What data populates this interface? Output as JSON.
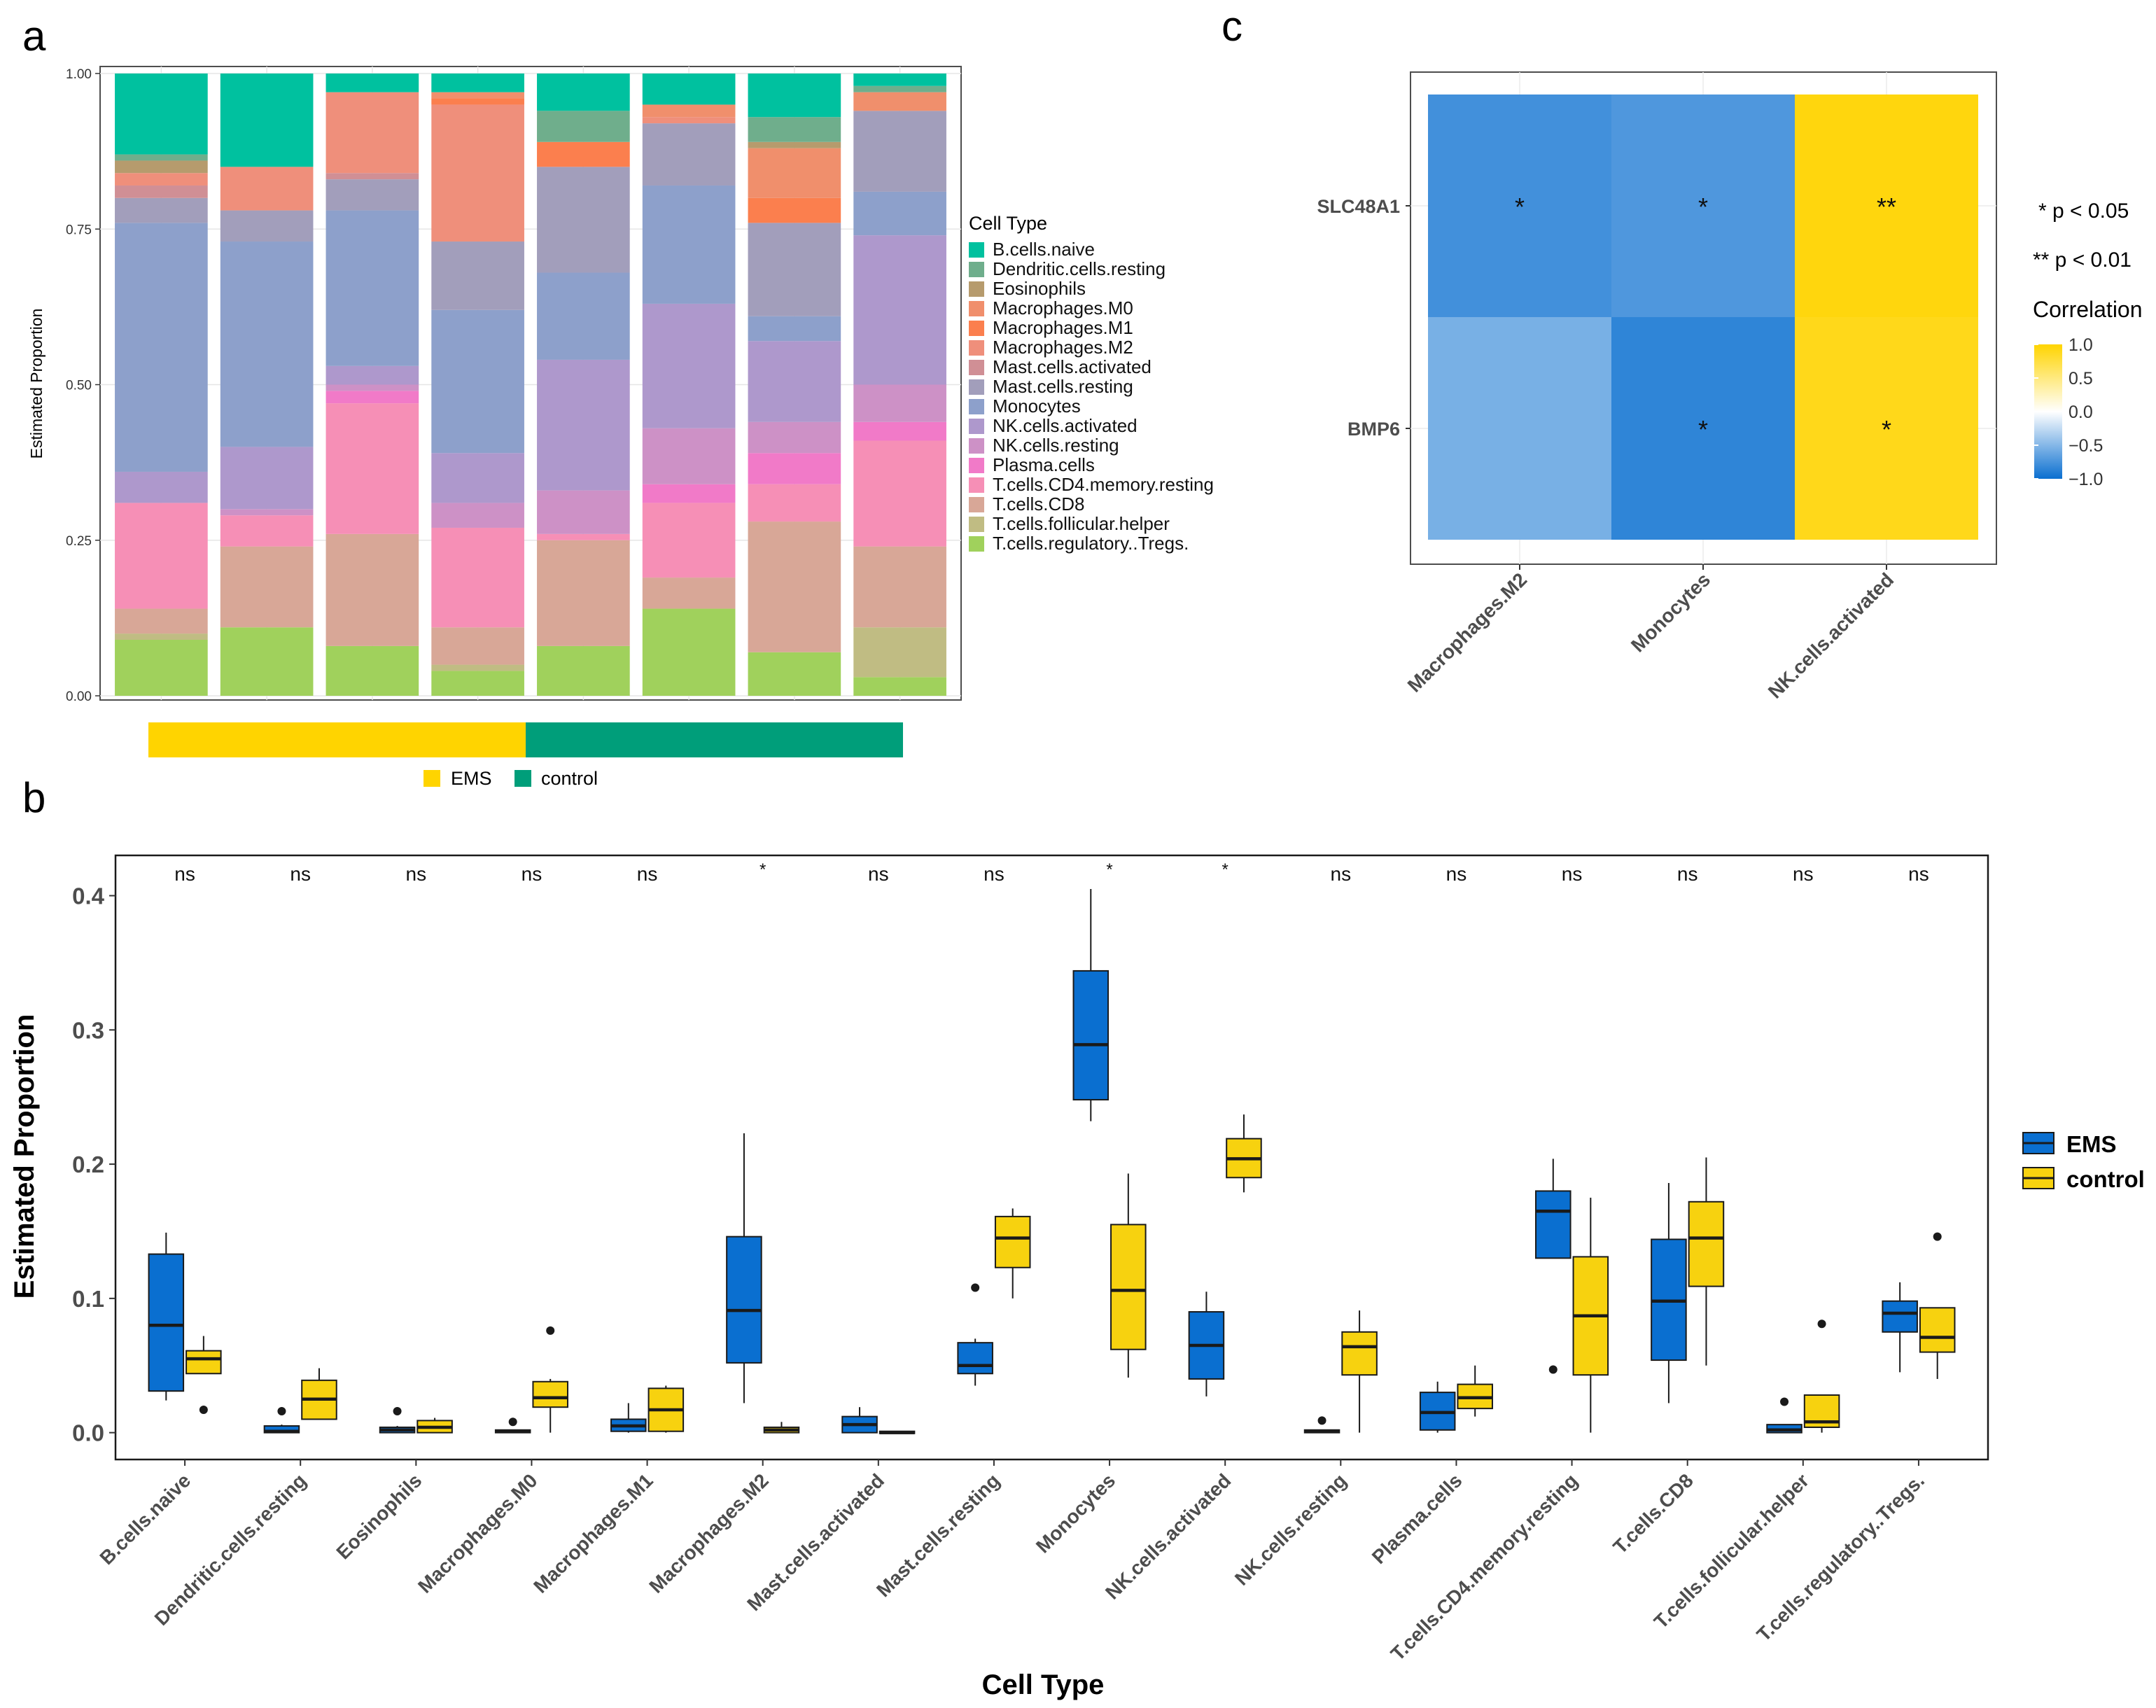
{
  "panel_labels": {
    "a": "a",
    "b": "b",
    "c": "c"
  },
  "colors": {
    "EMS": "#0a6fd0",
    "control": "#f7d20f",
    "EMS_bar": "#ffd400",
    "control_bar": "#009e7a",
    "correlation_high": "#ffd84a",
    "correlation_low": "#0a6fd0"
  },
  "chart_data": [
    {
      "id": "a",
      "type": "stacked-bar",
      "title": "",
      "xlabel": "",
      "ylabel": "Estimated Proportion",
      "ylim": [
        0,
        1
      ],
      "yticks": [
        "0.00",
        "0.25",
        "0.50",
        "0.75",
        "1.00"
      ],
      "legend_title": "Cell Type",
      "legend_position": "right",
      "cell_types": [
        "B.cells.naive",
        "Dendritic.cells.resting",
        "Eosinophils",
        "Macrophages.M0",
        "Macrophages.M1",
        "Macrophages.M2",
        "Mast.cells.activated",
        "Mast.cells.resting",
        "Monocytes",
        "NK.cells.activated",
        "NK.cells.resting",
        "Plasma.cells",
        "T.cells.CD4.memory.resting",
        "T.cells.CD8",
        "T.cells.follicular.helper",
        "T.cells.regulatory..Tregs."
      ],
      "type_colors": [
        "#00c19f",
        "#6fae8c",
        "#b69b6d",
        "#f08f6c",
        "#fb7f4e",
        "#ef8f7b",
        "#d08f95",
        "#a29ebb",
        "#8da0cb",
        "#ae98cc",
        "#cd91c6",
        "#f17ac8",
        "#f68fb6",
        "#d8a797",
        "#c0bc83",
        "#a0d15c"
      ],
      "samples": [
        {
          "group": "EMS",
          "values": [
            0.13,
            0.01,
            0.02,
            0.0,
            0.0,
            0.02,
            0.02,
            0.04,
            0.4,
            0.05,
            0.0,
            0.0,
            0.17,
            0.04,
            0.01,
            0.09
          ]
        },
        {
          "group": "EMS",
          "values": [
            0.15,
            0.0,
            0.0,
            0.0,
            0.0,
            0.07,
            0.0,
            0.05,
            0.33,
            0.1,
            0.01,
            0.0,
            0.05,
            0.13,
            0.0,
            0.11
          ]
        },
        {
          "group": "EMS",
          "values": [
            0.03,
            0.0,
            0.0,
            0.0,
            0.0,
            0.13,
            0.01,
            0.05,
            0.25,
            0.03,
            0.01,
            0.02,
            0.21,
            0.18,
            0.0,
            0.08
          ]
        },
        {
          "group": "EMS",
          "values": [
            0.03,
            0.0,
            0.0,
            0.01,
            0.01,
            0.22,
            0.0,
            0.11,
            0.23,
            0.08,
            0.04,
            0.0,
            0.16,
            0.06,
            0.01,
            0.04
          ]
        },
        {
          "group": "control",
          "values": [
            0.06,
            0.05,
            0.0,
            0.0,
            0.04,
            0.0,
            0.0,
            0.17,
            0.14,
            0.21,
            0.07,
            0.0,
            0.01,
            0.17,
            0.0,
            0.08
          ]
        },
        {
          "group": "control",
          "values": [
            0.05,
            0.0,
            0.0,
            0.02,
            0.0,
            0.01,
            0.0,
            0.1,
            0.19,
            0.2,
            0.09,
            0.03,
            0.12,
            0.05,
            0.0,
            0.14
          ]
        },
        {
          "group": "control",
          "values": [
            0.07,
            0.04,
            0.01,
            0.08,
            0.04,
            0.0,
            0.0,
            0.15,
            0.04,
            0.13,
            0.05,
            0.05,
            0.06,
            0.21,
            0.0,
            0.07
          ]
        },
        {
          "group": "control",
          "values": [
            0.02,
            0.01,
            0.0,
            0.03,
            0.0,
            0.0,
            0.0,
            0.13,
            0.07,
            0.24,
            0.06,
            0.03,
            0.17,
            0.13,
            0.08,
            0.03
          ]
        }
      ],
      "group_legend": [
        "EMS",
        "control"
      ]
    },
    {
      "id": "b",
      "type": "boxplot",
      "xlabel": "Cell Type",
      "ylabel": "Estimated Proportion",
      "ylim": [
        -0.02,
        0.43
      ],
      "yticks": [
        "0.0",
        "0.1",
        "0.2",
        "0.3",
        "0.4"
      ],
      "legend_position": "right",
      "groups": [
        "EMS",
        "control"
      ],
      "categories": [
        "B.cells.naive",
        "Dendritic.cells.resting",
        "Eosinophils",
        "Macrophages.M0",
        "Macrophages.M1",
        "Macrophages.M2",
        "Mast.cells.activated",
        "Mast.cells.resting",
        "Monocytes",
        "NK.cells.activated",
        "NK.cells.resting",
        "Plasma.cells",
        "T.cells.CD4.memory.resting",
        "T.cells.CD8",
        "T.cells.follicular.helper",
        "T.cells.regulatory..Tregs."
      ],
      "significance": [
        "ns",
        "ns",
        "ns",
        "ns",
        "ns",
        "*",
        "ns",
        "ns",
        "*",
        "*",
        "ns",
        "ns",
        "ns",
        "ns",
        "ns",
        "ns"
      ],
      "series": [
        {
          "name": "EMS",
          "boxes": [
            {
              "min": 0.024,
              "q1": 0.031,
              "median": 0.08,
              "q3": 0.133,
              "max": 0.149,
              "outliers": []
            },
            {
              "min": 0.0,
              "q1": 0.0,
              "median": 0.001,
              "q3": 0.005,
              "max": 0.006,
              "outliers": [
                0.016
              ]
            },
            {
              "min": 0.0,
              "q1": 0.0,
              "median": 0.002,
              "q3": 0.004,
              "max": 0.005,
              "outliers": [
                0.016
              ]
            },
            {
              "min": 0.0,
              "q1": 0.0,
              "median": 0.001,
              "q3": 0.002,
              "max": 0.002,
              "outliers": [
                0.008
              ]
            },
            {
              "min": 0.0,
              "q1": 0.001,
              "median": 0.005,
              "q3": 0.01,
              "max": 0.022,
              "outliers": []
            },
            {
              "min": 0.022,
              "q1": 0.052,
              "median": 0.091,
              "q3": 0.146,
              "max": 0.223,
              "outliers": []
            },
            {
              "min": 0.0,
              "q1": 0.0,
              "median": 0.006,
              "q3": 0.012,
              "max": 0.019,
              "outliers": []
            },
            {
              "min": 0.035,
              "q1": 0.044,
              "median": 0.05,
              "q3": 0.067,
              "max": 0.07,
              "outliers": [
                0.108
              ]
            },
            {
              "min": 0.232,
              "q1": 0.248,
              "median": 0.289,
              "q3": 0.344,
              "max": 0.405,
              "outliers": []
            },
            {
              "min": 0.027,
              "q1": 0.04,
              "median": 0.065,
              "q3": 0.09,
              "max": 0.105,
              "outliers": []
            },
            {
              "min": 0.0,
              "q1": 0.0,
              "median": 0.001,
              "q3": 0.002,
              "max": 0.002,
              "outliers": [
                0.009
              ]
            },
            {
              "min": 0.0,
              "q1": 0.002,
              "median": 0.015,
              "q3": 0.03,
              "max": 0.038,
              "outliers": []
            },
            {
              "min": 0.13,
              "q1": 0.13,
              "median": 0.165,
              "q3": 0.18,
              "max": 0.204,
              "outliers": [
                0.047
              ]
            },
            {
              "min": 0.022,
              "q1": 0.054,
              "median": 0.098,
              "q3": 0.144,
              "max": 0.186,
              "outliers": []
            },
            {
              "min": 0.0,
              "q1": 0.0,
              "median": 0.002,
              "q3": 0.006,
              "max": 0.006,
              "outliers": [
                0.023
              ]
            },
            {
              "min": 0.045,
              "q1": 0.075,
              "median": 0.089,
              "q3": 0.098,
              "max": 0.112,
              "outliers": []
            }
          ]
        },
        {
          "name": "control",
          "boxes": [
            {
              "min": 0.044,
              "q1": 0.044,
              "median": 0.055,
              "q3": 0.061,
              "max": 0.072,
              "outliers": [
                0.017
              ]
            },
            {
              "min": 0.01,
              "q1": 0.01,
              "median": 0.025,
              "q3": 0.039,
              "max": 0.048,
              "outliers": []
            },
            {
              "min": 0.0,
              "q1": 0.0,
              "median": 0.004,
              "q3": 0.009,
              "max": 0.011,
              "outliers": []
            },
            {
              "min": 0.0,
              "q1": 0.019,
              "median": 0.026,
              "q3": 0.038,
              "max": 0.04,
              "outliers": [
                0.076
              ]
            },
            {
              "min": 0.0,
              "q1": 0.001,
              "median": 0.017,
              "q3": 0.033,
              "max": 0.035,
              "outliers": []
            },
            {
              "min": 0.0,
              "q1": 0.0,
              "median": 0.002,
              "q3": 0.004,
              "max": 0.008,
              "outliers": []
            },
            {
              "min": 0.0,
              "q1": 0.0,
              "median": 0.0,
              "q3": 0.001,
              "max": 0.001,
              "outliers": []
            },
            {
              "min": 0.1,
              "q1": 0.123,
              "median": 0.145,
              "q3": 0.161,
              "max": 0.167,
              "outliers": []
            },
            {
              "min": 0.041,
              "q1": 0.062,
              "median": 0.106,
              "q3": 0.155,
              "max": 0.193,
              "outliers": []
            },
            {
              "min": 0.179,
              "q1": 0.19,
              "median": 0.204,
              "q3": 0.219,
              "max": 0.237,
              "outliers": []
            },
            {
              "min": 0.0,
              "q1": 0.043,
              "median": 0.064,
              "q3": 0.075,
              "max": 0.091,
              "outliers": []
            },
            {
              "min": 0.012,
              "q1": 0.018,
              "median": 0.026,
              "q3": 0.036,
              "max": 0.05,
              "outliers": []
            },
            {
              "min": 0.0,
              "q1": 0.043,
              "median": 0.087,
              "q3": 0.131,
              "max": 0.175,
              "outliers": []
            },
            {
              "min": 0.05,
              "q1": 0.109,
              "median": 0.145,
              "q3": 0.172,
              "max": 0.205,
              "outliers": []
            },
            {
              "min": 0.0,
              "q1": 0.004,
              "median": 0.008,
              "q3": 0.028,
              "max": 0.028,
              "outliers": [
                0.081
              ]
            },
            {
              "min": 0.04,
              "q1": 0.06,
              "median": 0.071,
              "q3": 0.093,
              "max": 0.093,
              "outliers": [
                0.146
              ]
            }
          ]
        }
      ]
    },
    {
      "id": "c",
      "type": "heatmap",
      "rows": [
        "SLC48A1",
        "BMP6"
      ],
      "columns": [
        "Macrophages.M2",
        "Monocytes",
        "NK.cells.activated"
      ],
      "values": [
        [
          -0.77,
          -0.72,
          0.95
        ],
        [
          -0.55,
          -0.85,
          0.9
        ]
      ],
      "stars": [
        [
          "*",
          "*",
          "**"
        ],
        [
          "",
          "*",
          "*"
        ]
      ],
      "significance_legend": [
        "* p < 0.05",
        "** p < 0.01"
      ],
      "colorbar_title": "Correlation",
      "colorbar_range": [
        -1.0,
        1.0
      ],
      "colorbar_ticks": [
        "1.0",
        "0.5",
        "0.0",
        "−0.5",
        "−1.0"
      ],
      "legend_position": "right"
    }
  ]
}
